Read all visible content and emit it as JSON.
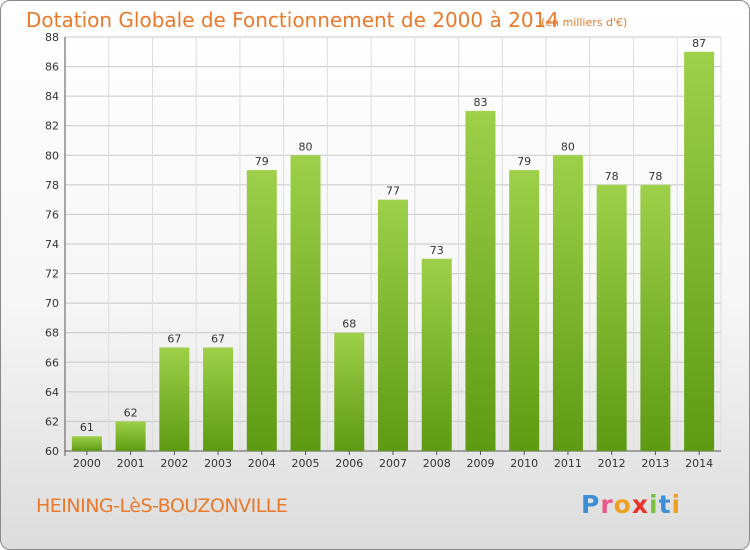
{
  "title": "Dotation Globale de Fonctionnement de 2000 à 2014",
  "subtitle": "(en milliers d'€)",
  "commune": "HEINING-LèS-BOUZONVILLE",
  "logo": {
    "letters": [
      "P",
      "r",
      "o",
      "x",
      "i",
      "t",
      "i"
    ],
    "colors": [
      "#3a8fd6",
      "#e85a8a",
      "#f0a020",
      "#e8322a",
      "#7cc242",
      "#3a8fd6",
      "#f0a020"
    ]
  },
  "colors": {
    "bar_light": "#9ed04a",
    "bar_dark": "#5e9a12",
    "accent": "#e9792b"
  },
  "chart_data": {
    "type": "bar",
    "categories": [
      "2000",
      "2001",
      "2002",
      "2003",
      "2004",
      "2005",
      "2006",
      "2007",
      "2008",
      "2009",
      "2010",
      "2011",
      "2012",
      "2013",
      "2014"
    ],
    "values": [
      61,
      62,
      67,
      67,
      79,
      80,
      68,
      77,
      73,
      83,
      79,
      80,
      78,
      78,
      87
    ],
    "ylim": [
      60,
      88
    ],
    "yticks": [
      "60",
      "62",
      "64",
      "66",
      "68",
      "70",
      "72",
      "74",
      "76",
      "78",
      "80",
      "82",
      "84",
      "86",
      "88"
    ],
    "grid": true
  }
}
